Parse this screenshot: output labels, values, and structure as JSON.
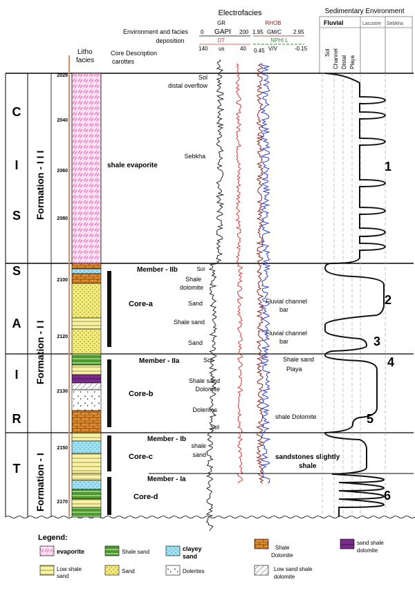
{
  "header": {
    "electrofacies_title": "Electrofacies",
    "env_label_1": "Environment and facies",
    "env_label_2": "deposition",
    "litho_label_1": "Litho",
    "litho_label_2": "facies",
    "core_desc_1": "Core Description",
    "core_desc_2": "carottes",
    "sed_env_title": "Sedimentary Environment",
    "fluvial": "Fluvial",
    "lacustre": "Lacustre",
    "sebkha": "Sebkha",
    "sol": "Sol",
    "channel": "Channel",
    "distal": "Distal",
    "playa": "Playa"
  },
  "log_headers": {
    "gr": "GR",
    "gr_unit": "GAPI",
    "gr_min": "0",
    "gr_max": "200",
    "dt": "DT",
    "dt_unit": "us",
    "dt_min": "140",
    "dt_max": "40",
    "rhob": "RHOB",
    "rhob_unit": "GM/C",
    "rhob_min": "1.95",
    "rhob_max": "2.95",
    "nphi": "NPHI L",
    "nphi_unit": "V/V",
    "nphi_min": "0.45",
    "nphi_max": "-0.15"
  },
  "system_letters": [
    "T",
    "R",
    "I",
    "A",
    "S",
    "S",
    "I",
    "C"
  ],
  "formations": {
    "f3": "Formation - I I I",
    "f2": "Formation - I I",
    "f1": "Formation - I"
  },
  "depths": [
    "2028",
    "2040",
    "2060",
    "2080",
    "2100",
    "2120",
    "2130",
    "2150",
    "2170"
  ],
  "descriptions": {
    "shale_evaporite": "shale evaporite",
    "sol_1": "Sol",
    "distal_overflow": "distal overflow",
    "sebkha": "Sebkha",
    "member_iib": "Member - IIb",
    "sol_2": "Sol",
    "shale": "Shale",
    "dolomite": "dolomite",
    "core_a": "Core-a",
    "sand_1": "Sand",
    "shale_sand_1": "Shale sand",
    "sand_2": "Sand",
    "fluvial_channel_1": "Fluvial channel",
    "bar_1": "bar",
    "fluvial_channel_2": "Fluvial channel",
    "bar_2": "bar",
    "member_iia": "Member - IIa",
    "sol_3": "Sol",
    "shale_sand_right": "Shale sand",
    "playa": "Playa",
    "shale_sand_2": "Shale sand",
    "dolomite_2": "Dolomite",
    "core_b": "Core-b",
    "dolerites": "Dolerites",
    "shale_dolomite": "shale Dolomite",
    "sol_4": "Sol",
    "member_ib": "Member - Ib",
    "shale_word": "shale",
    "sand_word": "sand",
    "core_c": "Core-c",
    "sandstones": "sandstones slightly",
    "shale_right": "shale",
    "member_ia": "Member - Ia",
    "core_d": "Core-d"
  },
  "env_numbers": [
    "1",
    "2",
    "3",
    "4",
    "5",
    "6"
  ],
  "legend": {
    "title": "Legend:",
    "evaporite": "evaporite",
    "low_shale_sand_1": "Low shale",
    "low_shale_sand_2": "sand",
    "shale_sand": "Shale sand",
    "sand": "Sand",
    "clayey_sand_1": "clayey",
    "clayey_sand_2": "sand",
    "dolerites": "Dolerites",
    "shale_dolomite_1": "Shale",
    "shale_dolomite_2": "Dolomite",
    "low_sand_shale_1": "Low sand shale",
    "low_sand_shale_2": "dolomite",
    "sand_shale_dol_1": "sand shale",
    "sand_shale_dol_2": "dolomite"
  },
  "colors": {
    "evaporite": "#f06cc0",
    "sand": "#f4ec7a",
    "shale_sand": "#4a9a2c",
    "clayey_sand": "#9fe2f4",
    "dolomite": "#e08a2a",
    "sand_shale_dolomite": "#7a2a8a",
    "gr_curve": "#222222",
    "dt_curve": "#d83a3a",
    "rhob_curve": "#8a2020",
    "nphi_curve": "#2a3ad0"
  }
}
